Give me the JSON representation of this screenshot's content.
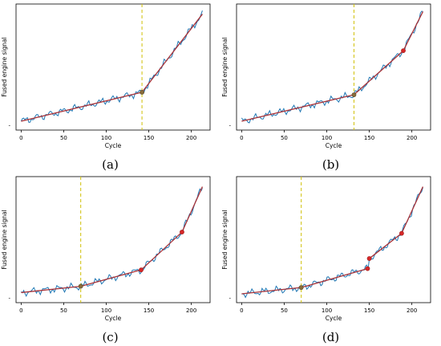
{
  "chart_data": [
    {
      "type": "line",
      "panel_label": "(a)",
      "xlabel": "Cycle",
      "ylabel": "Fused engine signal",
      "xticks": [
        0,
        50,
        100,
        150,
        200
      ],
      "yticks": [
        "-"
      ],
      "xlim": [
        -6,
        222
      ],
      "ylim": [
        0,
        1
      ],
      "vline_x": 142,
      "breakpoints": [
        {
          "x": 142,
          "y": 0.3
        }
      ],
      "fit_segments": [
        {
          "x": [
            0,
            142
          ],
          "y": [
            0.07,
            0.3
          ]
        },
        {
          "x": [
            142,
            213
          ],
          "y": [
            0.3,
            0.92
          ]
        }
      ],
      "colors": {
        "signal": "#1f77b4",
        "fit": "#a83238",
        "vline": "#d4c51a",
        "marker": "#d62728"
      }
    },
    {
      "type": "line",
      "panel_label": "(b)",
      "xlabel": "Cycle",
      "ylabel": "Fused engine signal",
      "xticks": [
        0,
        50,
        100,
        150,
        200
      ],
      "yticks": [
        "-"
      ],
      "xlim": [
        -6,
        222
      ],
      "ylim": [
        0,
        1
      ],
      "vline_x": 132,
      "breakpoints": [
        {
          "x": 132,
          "y": 0.28
        },
        {
          "x": 190,
          "y": 0.63
        }
      ],
      "fit_segments": [
        {
          "x": [
            0,
            132
          ],
          "y": [
            0.07,
            0.28
          ]
        },
        {
          "x": [
            132,
            190
          ],
          "y": [
            0.28,
            0.63
          ]
        },
        {
          "x": [
            190,
            213
          ],
          "y": [
            0.63,
            0.94
          ]
        }
      ],
      "colors": {
        "signal": "#1f77b4",
        "fit": "#a83238",
        "vline": "#d4c51a",
        "marker": "#d62728"
      }
    },
    {
      "type": "line",
      "panel_label": "(c)",
      "xlabel": "Cycle",
      "ylabel": "Fused engine signal",
      "xticks": [
        0,
        50,
        100,
        150,
        200
      ],
      "yticks": [
        "-"
      ],
      "xlim": [
        -6,
        222
      ],
      "ylim": [
        0,
        1
      ],
      "vline_x": 70,
      "breakpoints": [
        {
          "x": 70,
          "y": 0.13
        },
        {
          "x": 141,
          "y": 0.26
        },
        {
          "x": 189,
          "y": 0.56
        }
      ],
      "fit_segments": [
        {
          "x": [
            0,
            70
          ],
          "y": [
            0.08,
            0.13
          ]
        },
        {
          "x": [
            70,
            141
          ],
          "y": [
            0.13,
            0.26
          ]
        },
        {
          "x": [
            141,
            189
          ],
          "y": [
            0.26,
            0.56
          ]
        },
        {
          "x": [
            189,
            213
          ],
          "y": [
            0.56,
            0.92
          ]
        }
      ],
      "colors": {
        "signal": "#1f77b4",
        "fit": "#a83238",
        "vline": "#d4c51a",
        "marker": "#d62728"
      }
    },
    {
      "type": "line",
      "panel_label": "(d)",
      "xlabel": "Cycle",
      "ylabel": "Fused engine signal",
      "xticks": [
        0,
        50,
        100,
        150,
        200
      ],
      "yticks": [
        "-"
      ],
      "xlim": [
        -6,
        222
      ],
      "ylim": [
        0,
        1
      ],
      "vline_x": 70,
      "breakpoints": [
        {
          "x": 70,
          "y": 0.12
        },
        {
          "x": 148,
          "y": 0.27
        },
        {
          "x": 150,
          "y": 0.35
        },
        {
          "x": 188,
          "y": 0.55
        }
      ],
      "fit_segments": [
        {
          "x": [
            0,
            70
          ],
          "y": [
            0.07,
            0.12
          ]
        },
        {
          "x": [
            70,
            148
          ],
          "y": [
            0.12,
            0.27
          ]
        },
        {
          "x": [
            150,
            188
          ],
          "y": [
            0.35,
            0.55
          ]
        },
        {
          "x": [
            188,
            213
          ],
          "y": [
            0.55,
            0.92
          ]
        }
      ],
      "colors": {
        "signal": "#1f77b4",
        "fit": "#a83238",
        "vline": "#d4c51a",
        "marker": "#d62728"
      }
    }
  ]
}
